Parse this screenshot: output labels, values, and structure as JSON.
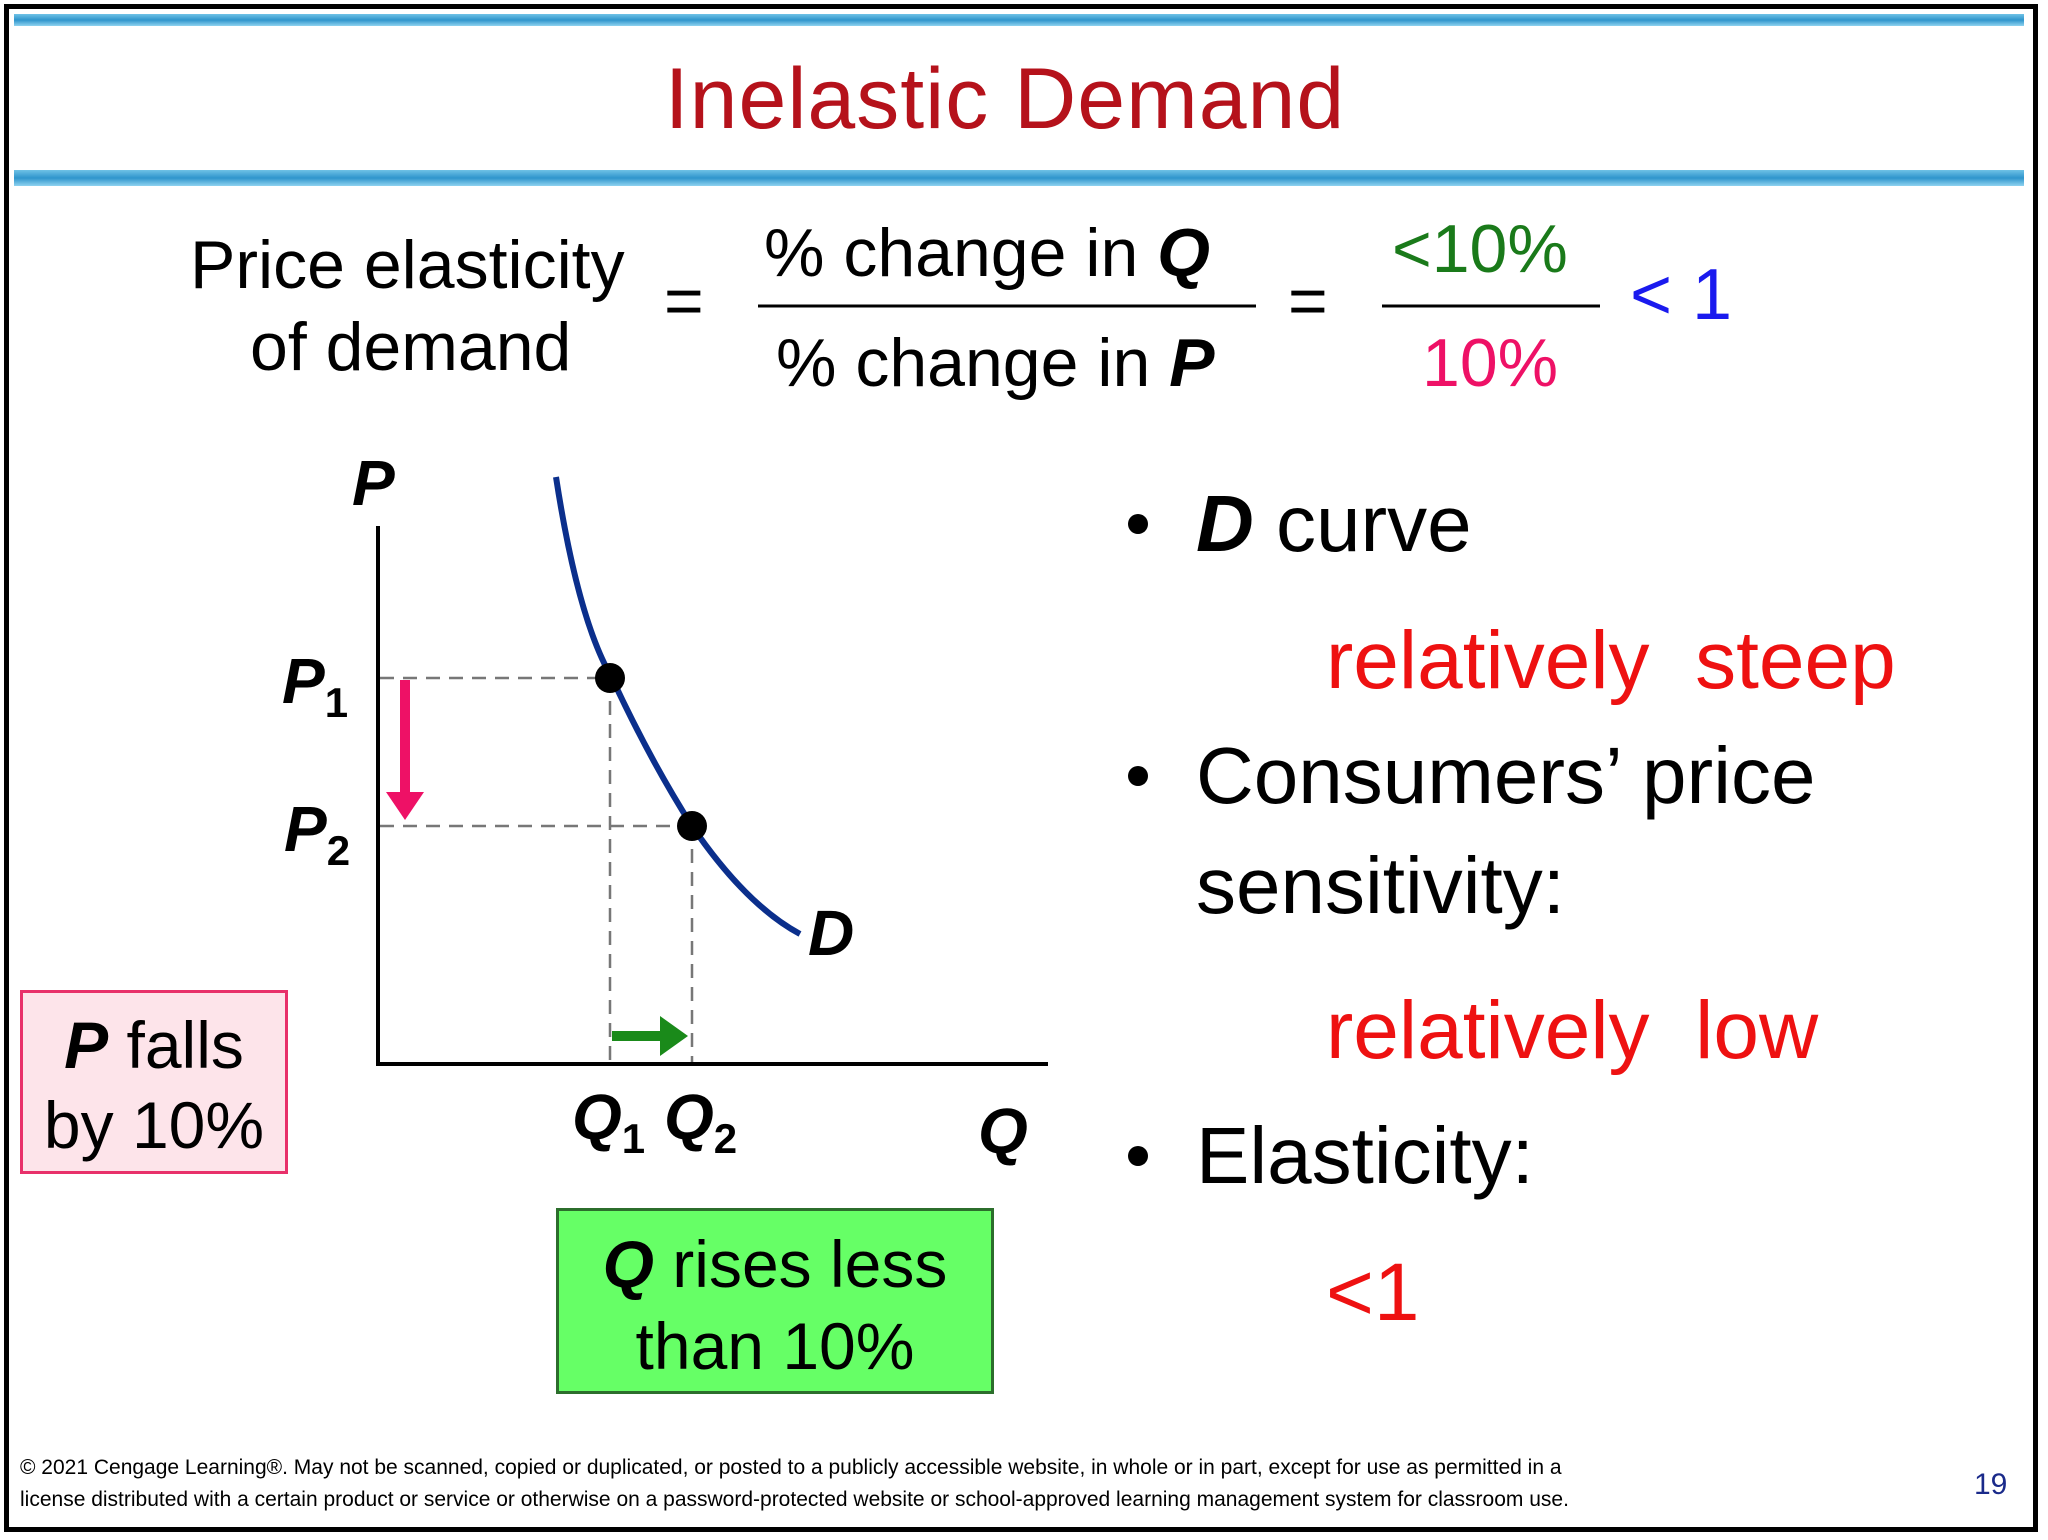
{
  "slide": {
    "title": "Inelastic Demand",
    "page_number": "19",
    "colors": {
      "title": "#b5121b",
      "accent_red": "#ee1111",
      "green": "#1a7a1a",
      "magenta": "#ee1166",
      "blue": "#1a1aee"
    }
  },
  "formula": {
    "lhs_line1": "Price elasticity",
    "lhs_line2": "of demand",
    "eq1": "=",
    "num_text": "% change in ",
    "num_var": "Q",
    "den_text": "% change in ",
    "den_var": "P",
    "eq2": "=",
    "num_value": "<10%",
    "den_value": "10%",
    "result": "< 1"
  },
  "graph": {
    "y_axis_label": "P",
    "x_axis_label": "Q",
    "curve_label": "D",
    "p1_main": "P",
    "p1_sub": "1",
    "p2_main": "P",
    "p2_sub": "2",
    "q1_main": "Q",
    "q1_sub": "1",
    "q2_main": "Q",
    "q2_sub": "2"
  },
  "p_box": {
    "var": "P",
    "text1": " falls",
    "text2": "by 10%"
  },
  "q_box": {
    "var": "Q",
    "text1": " rises less",
    "text2": "than 10%"
  },
  "bullets": [
    {
      "var": "D",
      "text": " curve",
      "answer": "relatively  steep"
    },
    {
      "text_line1": "Consumers’ price",
      "text_line2": "sensitivity:",
      "answer": "relatively  low"
    },
    {
      "text": "Elasticity:",
      "answer": "<1"
    }
  ],
  "footer": {
    "line1": "© 2021 Cengage Learning®. May not be scanned, copied or duplicated, or posted to a publicly accessible website, in whole or in part, except for use as permitted in a",
    "line2": "license distributed with a certain product or service or otherwise on a password-protected website or school-approved learning management system for classroom use."
  }
}
